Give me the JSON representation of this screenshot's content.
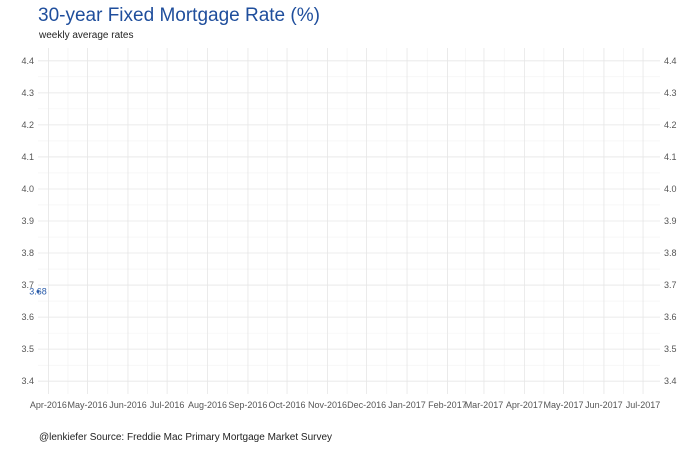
{
  "title": "30-year Fixed Mortgage Rate (%)",
  "subtitle": "weekly average rates",
  "caption": "@lenkiefer Source: Freddie Mac Primary Mortgage Market Survey",
  "colors": {
    "title": "#1f4e9c",
    "series": "#2a5caa",
    "grid": "#e6e6e6",
    "axis_text": "#555555"
  },
  "chart_data": {
    "type": "line",
    "title": "30-year Fixed Mortgage Rate (%)",
    "subtitle": "weekly average rates",
    "xlabel": "",
    "ylabel": "",
    "grid": true,
    "y_axis_both_sides": true,
    "xlim": [
      "2016-03-24",
      "2017-07-14"
    ],
    "ylim": [
      3.36,
      4.44
    ],
    "x_ticks": [
      {
        "date": "2016-04-01",
        "label": "Apr-2016"
      },
      {
        "date": "2016-05-01",
        "label": "May-2016"
      },
      {
        "date": "2016-06-01",
        "label": "Jun-2016"
      },
      {
        "date": "2016-07-01",
        "label": "Jul-2016"
      },
      {
        "date": "2016-08-01",
        "label": "Aug-2016"
      },
      {
        "date": "2016-09-01",
        "label": "Sep-2016"
      },
      {
        "date": "2016-10-01",
        "label": "Oct-2016"
      },
      {
        "date": "2016-11-01",
        "label": "Nov-2016"
      },
      {
        "date": "2016-12-01",
        "label": "Dec-2016"
      },
      {
        "date": "2017-01-01",
        "label": "Jan-2017"
      },
      {
        "date": "2017-02-01",
        "label": "Feb-2017"
      },
      {
        "date": "2017-03-01",
        "label": "Mar-2017"
      },
      {
        "date": "2017-04-01",
        "label": "Apr-2017"
      },
      {
        "date": "2017-05-01",
        "label": "May-2017"
      },
      {
        "date": "2017-06-01",
        "label": "Jun-2017"
      },
      {
        "date": "2017-07-01",
        "label": "Jul-2017"
      }
    ],
    "y_ticks": [
      "3.4",
      "3.5",
      "3.6",
      "3.7",
      "3.8",
      "3.9",
      "4.0",
      "4.1",
      "4.2",
      "4.3",
      "4.4"
    ],
    "series": [
      {
        "points": [
          {
            "x": "2016-03-24",
            "y": 3.68
          }
        ],
        "point_labels": [
          "3.68"
        ]
      }
    ]
  }
}
